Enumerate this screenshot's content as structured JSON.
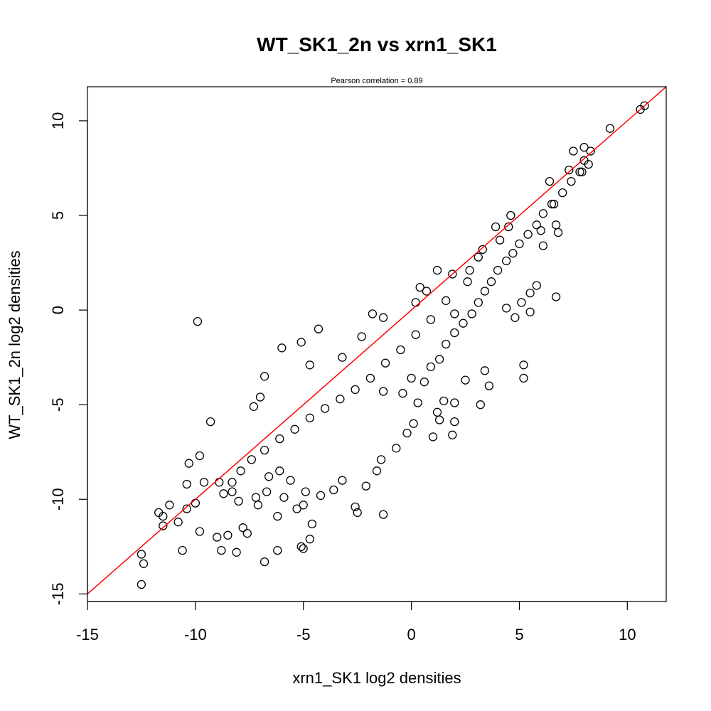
{
  "chart_data": {
    "type": "scatter",
    "title": "WT_SK1_2n vs xrn1_SK1",
    "subtitle": "Pearson correlation =  0.89",
    "xlabel": "xrn1_SK1 log2 densities",
    "ylabel": "WT_SK1_2n log2 densities",
    "xlim": [
      -15,
      11.8
    ],
    "ylim": [
      -15.4,
      11.8
    ],
    "xticks": [
      -15,
      -10,
      -5,
      0,
      5,
      10
    ],
    "yticks": [
      -15,
      -10,
      -5,
      0,
      5,
      10
    ],
    "xtick_labels": [
      "-15",
      "-10",
      "-5",
      "0",
      "5",
      "10"
    ],
    "ytick_labels": [
      "-15",
      "-10",
      "-5",
      "0",
      "5",
      "10"
    ],
    "grid": false,
    "marker": "open-circle",
    "marker_color": "#000000",
    "reference_line": {
      "type": "identity",
      "slope": 1,
      "intercept": 0,
      "color": "#ff0000"
    },
    "series": [
      {
        "points": [
          [
            10.8,
            10.8
          ],
          [
            10.6,
            10.6
          ],
          [
            9.2,
            9.6
          ],
          [
            8.3,
            8.4
          ],
          [
            8.0,
            8.6
          ],
          [
            7.5,
            8.4
          ],
          [
            8.2,
            7.7
          ],
          [
            8.0,
            7.9
          ],
          [
            7.9,
            7.3
          ],
          [
            7.3,
            7.4
          ],
          [
            6.6,
            5.6
          ],
          [
            6.4,
            6.8
          ],
          [
            6.7,
            4.5
          ],
          [
            6.8,
            4.1
          ],
          [
            6.0,
            4.2
          ],
          [
            6.1,
            3.4
          ],
          [
            5.8,
            1.3
          ],
          [
            5.5,
            0.9
          ],
          [
            6.7,
            0.7
          ],
          [
            5.1,
            0.4
          ],
          [
            5.5,
            -0.1
          ],
          [
            4.4,
            0.1
          ],
          [
            5.2,
            -2.9
          ],
          [
            5.2,
            -3.6
          ],
          [
            4.8,
            -0.4
          ],
          [
            3.6,
            -4.0
          ],
          [
            3.4,
            -3.2
          ],
          [
            2.5,
            -3.7
          ],
          [
            2.0,
            -4.9
          ],
          [
            3.2,
            -5.0
          ],
          [
            1.5,
            -4.8
          ],
          [
            1.2,
            -5.4
          ],
          [
            1.3,
            -5.8
          ],
          [
            2.0,
            -5.9
          ],
          [
            1.9,
            -6.6
          ],
          [
            1.0,
            -6.7
          ],
          [
            2.0,
            -0.2
          ],
          [
            1.9,
            1.9
          ],
          [
            1.2,
            2.1
          ],
          [
            0.7,
            1.0
          ],
          [
            0.4,
            1.2
          ],
          [
            0.2,
            0.4
          ],
          [
            -1.3,
            -0.4
          ],
          [
            -1.8,
            -0.2
          ],
          [
            -4.3,
            -1.0
          ],
          [
            -5.1,
            -1.7
          ],
          [
            -6.0,
            -2.0
          ],
          [
            -9.9,
            -0.6
          ],
          [
            -4.7,
            -2.9
          ],
          [
            -6.8,
            -3.5
          ],
          [
            -2.3,
            -1.4
          ],
          [
            -3.2,
            -2.5
          ],
          [
            -0.4,
            -4.4
          ],
          [
            0.0,
            -3.6
          ],
          [
            -1.3,
            -4.3
          ],
          [
            -7.0,
            -4.6
          ],
          [
            -7.3,
            -5.1
          ],
          [
            -9.3,
            -5.9
          ],
          [
            -9.8,
            -7.7
          ],
          [
            -10.3,
            -8.1
          ],
          [
            -9.6,
            -9.1
          ],
          [
            -10.0,
            -10.2
          ],
          [
            -10.4,
            -9.2
          ],
          [
            -10.4,
            -10.5
          ],
          [
            -11.2,
            -10.3
          ],
          [
            -11.5,
            -10.9
          ],
          [
            -11.7,
            -10.7
          ],
          [
            -10.8,
            -11.2
          ],
          [
            -11.5,
            -11.4
          ],
          [
            -12.4,
            -13.4
          ],
          [
            -12.5,
            -12.9
          ],
          [
            -12.5,
            -14.5
          ],
          [
            -10.6,
            -12.7
          ],
          [
            -9.8,
            -11.7
          ],
          [
            -9.0,
            -12.0
          ],
          [
            -8.8,
            -12.7
          ],
          [
            -8.1,
            -12.8
          ],
          [
            -6.8,
            -13.3
          ],
          [
            -6.2,
            -12.7
          ],
          [
            -5.1,
            -12.5
          ],
          [
            -5.0,
            -12.6
          ],
          [
            -4.7,
            -12.1
          ],
          [
            -6.2,
            -10.9
          ],
          [
            -5.3,
            -10.5
          ],
          [
            -5.0,
            -10.3
          ],
          [
            -2.6,
            -10.4
          ],
          [
            -2.5,
            -10.7
          ],
          [
            -1.3,
            -10.8
          ],
          [
            -4.6,
            -11.3
          ],
          [
            -7.8,
            -11.5
          ],
          [
            -7.6,
            -11.8
          ],
          [
            -8.5,
            -11.9
          ],
          [
            -8.9,
            -9.1
          ],
          [
            -8.3,
            -9.6
          ],
          [
            -8.0,
            -10.1
          ],
          [
            -7.2,
            -9.9
          ],
          [
            -7.1,
            -10.3
          ],
          [
            -6.7,
            -9.6
          ],
          [
            -6.6,
            -8.8
          ],
          [
            -6.1,
            -8.5
          ],
          [
            -5.6,
            -9.0
          ],
          [
            -5.9,
            -9.9
          ],
          [
            -4.9,
            -9.6
          ],
          [
            -4.2,
            -9.8
          ],
          [
            -3.6,
            -9.5
          ],
          [
            -3.2,
            -9.0
          ],
          [
            -2.1,
            -9.3
          ],
          [
            -1.6,
            -8.5
          ],
          [
            -1.4,
            -7.9
          ],
          [
            -0.7,
            -7.3
          ],
          [
            -0.2,
            -6.5
          ],
          [
            0.1,
            -6.0
          ],
          [
            0.3,
            -4.9
          ],
          [
            0.6,
            -3.8
          ],
          [
            0.9,
            -3.0
          ],
          [
            1.3,
            -2.6
          ],
          [
            1.6,
            -1.8
          ],
          [
            2.0,
            -1.2
          ],
          [
            2.4,
            -0.7
          ],
          [
            2.8,
            -0.2
          ],
          [
            3.1,
            0.4
          ],
          [
            3.4,
            1.0
          ],
          [
            3.7,
            1.5
          ],
          [
            4.0,
            2.1
          ],
          [
            4.4,
            2.6
          ],
          [
            4.7,
            3.0
          ],
          [
            5.0,
            3.5
          ],
          [
            5.4,
            4.0
          ],
          [
            5.8,
            4.5
          ],
          [
            6.1,
            5.1
          ],
          [
            6.5,
            5.6
          ],
          [
            7.0,
            6.2
          ],
          [
            7.4,
            6.8
          ],
          [
            7.8,
            7.3
          ],
          [
            2.7,
            2.1
          ],
          [
            3.1,
            2.8
          ],
          [
            3.3,
            3.2
          ],
          [
            3.9,
            4.4
          ],
          [
            4.5,
            4.4
          ],
          [
            4.6,
            5.0
          ],
          [
            4.1,
            3.7
          ],
          [
            2.6,
            1.5
          ],
          [
            1.6,
            0.5
          ],
          [
            0.9,
            -0.5
          ],
          [
            0.2,
            -1.3
          ],
          [
            -0.5,
            -2.1
          ],
          [
            -1.2,
            -2.8
          ],
          [
            -1.9,
            -3.6
          ],
          [
            -2.6,
            -4.2
          ],
          [
            -3.3,
            -4.7
          ],
          [
            -4.0,
            -5.2
          ],
          [
            -4.7,
            -5.7
          ],
          [
            -5.4,
            -6.3
          ],
          [
            -6.1,
            -6.8
          ],
          [
            -6.8,
            -7.4
          ],
          [
            -7.4,
            -7.9
          ],
          [
            -7.9,
            -8.5
          ],
          [
            -8.3,
            -9.1
          ],
          [
            -8.7,
            -9.7
          ]
        ]
      }
    ]
  }
}
